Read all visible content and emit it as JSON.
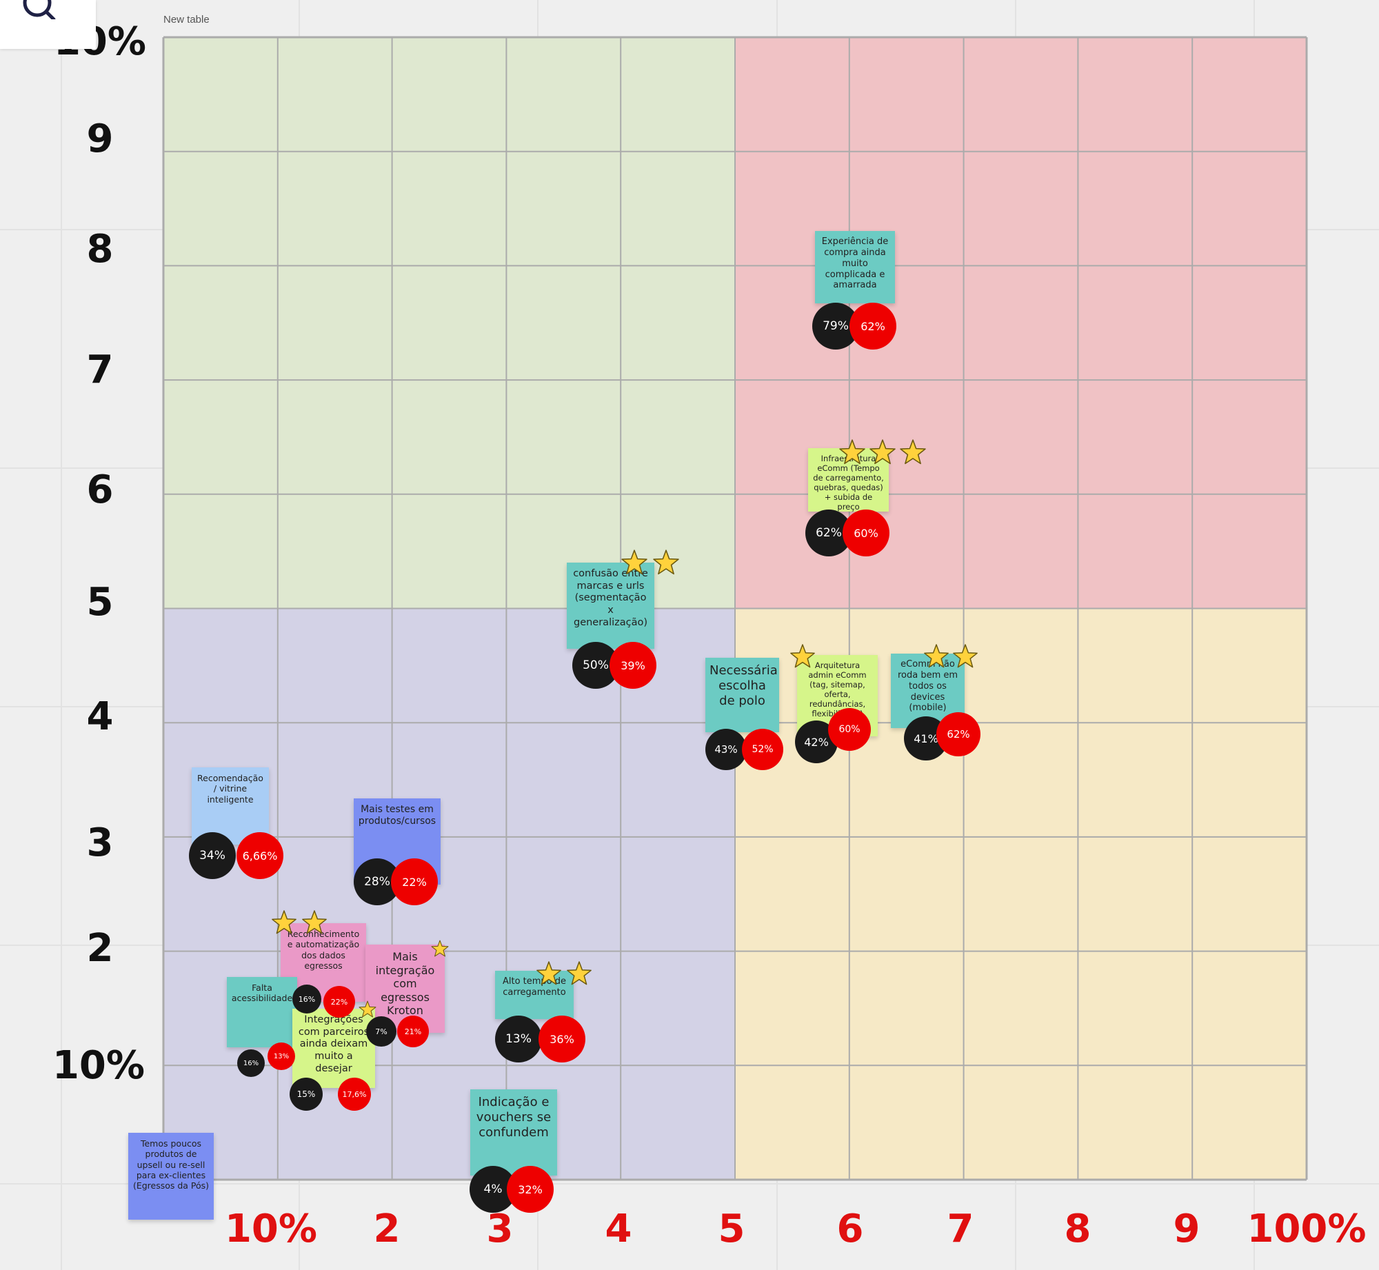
{
  "table": {
    "title": "New table"
  },
  "toolbar": {
    "search_icon": "search-icon"
  },
  "colors": {
    "green_quadrant": "#dfe8d0",
    "red_quadrant": "#f0c2c5",
    "purple_quadrant": "#d3d2e6",
    "yellow_quadrant": "#f6e9c6",
    "grid_line": "#ababab",
    "x_axis_labels": "#e01010",
    "y_axis_labels": "#111111",
    "star_fill": "#ffd23c"
  },
  "y_axis": {
    "labels": [
      "10%",
      "9",
      "8",
      "7",
      "6",
      "5",
      "4",
      "3",
      "2",
      "10%"
    ]
  },
  "x_axis": {
    "labels": [
      "10%",
      "2",
      "3",
      "4",
      "5",
      "6",
      "7",
      "8",
      "9",
      "100%"
    ]
  },
  "stickies": [
    {
      "id": "experiencia",
      "text": "Experiência de compra ainda muito complicada e amarrada",
      "color": "#6ccbc3",
      "stars": 0,
      "pct_black": "79%",
      "pct_red": "62%"
    },
    {
      "id": "infraestrutura",
      "text": "Infraestrutura eComm (Tempo de carregamento, quebras, quedas) + subida de preço",
      "color": "#d6f58a",
      "stars": 3,
      "pct_black": "62%",
      "pct_red": "60%"
    },
    {
      "id": "confusao",
      "text": "confusão entre marcas e urls (segmentação x generalização)",
      "color": "#6ccbc3",
      "stars": 2,
      "pct_black": "50%",
      "pct_red": "39%"
    },
    {
      "id": "polo",
      "text": "Necessária escolha de polo",
      "color": "#6ccbc3",
      "stars": 0,
      "pct_black": "43%",
      "pct_red": "52%"
    },
    {
      "id": "arquitetura",
      "text": "Arquitetura admin eComm (tag, sitemap, oferta, redundâncias, flexibilidade)",
      "color": "#d6f58a",
      "stars": 1,
      "pct_black": "42%",
      "pct_red": "60%"
    },
    {
      "id": "ecomm-devices",
      "text": "eComm não roda bem em todos os devices (mobile)",
      "color": "#6ccbc3",
      "stars": 2,
      "pct_black": "41%",
      "pct_red": "62%"
    },
    {
      "id": "recomendacao",
      "text": "Recomendação / vitrine inteligente",
      "color": "#a9cdf5",
      "stars": 0,
      "pct_black": "34%",
      "pct_red": "6,66%"
    },
    {
      "id": "testes",
      "text": "Mais testes em produtos/cursos",
      "color": "#7b8ef2",
      "stars": 0,
      "pct_black": "28%",
      "pct_red": "22%"
    },
    {
      "id": "reconhecimento",
      "text": "Reconhecimento e automatização dos dados egressos",
      "color": "#ea99c7",
      "stars": 2,
      "pct_black": "16%",
      "pct_red": "22%"
    },
    {
      "id": "integracao-kroton",
      "text": "Mais integração com egressos Kroton",
      "color": "#ea99c7",
      "stars": 1,
      "pct_black": "7%",
      "pct_red": "21%"
    },
    {
      "id": "acessibilidade",
      "text": "Falta acessibilidade",
      "color": "#6ccbc3",
      "stars": 0,
      "pct_black": "16%",
      "pct_red": "13%"
    },
    {
      "id": "parceiros",
      "text": "Integrações com parceiros ainda deixam muito a desejar",
      "color": "#d6f58a",
      "stars": 1,
      "pct_black": "15%",
      "pct_red": "17,6%"
    },
    {
      "id": "carregamento",
      "text": "Alto tempo de carregamento",
      "color": "#6ccbc3",
      "stars": 2,
      "pct_black": "13%",
      "pct_red": "36%"
    },
    {
      "id": "vouchers",
      "text": "Indicação e vouchers se confundem",
      "color": "#6ccbc3",
      "stars": 0,
      "pct_black": "4%",
      "pct_red": "32%"
    },
    {
      "id": "upsell",
      "text": "Temos poucos produtos de upsell ou re-sell para ex-clientes (Egressos da Pós)",
      "color": "#7b8ef2",
      "stars": 0
    }
  ]
}
